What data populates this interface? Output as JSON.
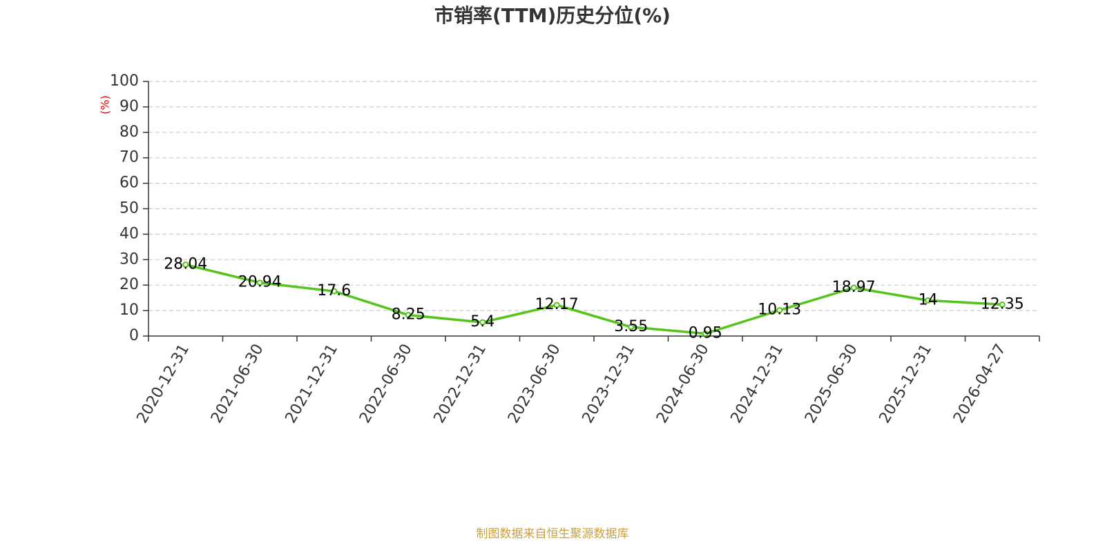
{
  "chart_data": {
    "type": "line",
    "title": "市销率(TTM)历史分位(%)",
    "y_label": "(%)",
    "source": "制图数据来自恒生聚源数据库",
    "categories": [
      "2020-12-31",
      "2021-06-30",
      "2021-12-31",
      "2022-06-30",
      "2022-12-31",
      "2023-06-30",
      "2023-12-31",
      "2024-06-30",
      "2024-12-31",
      "2025-06-30",
      "2025-12-31",
      "2026-04-27"
    ],
    "values": [
      28.04,
      20.94,
      17.6,
      8.25,
      5.4,
      12.17,
      3.55,
      0.95,
      10.13,
      18.97,
      14,
      12.35
    ],
    "color": "#52c41a",
    "ylim": [
      0,
      100
    ],
    "yticks": [
      0,
      10,
      20,
      30,
      40,
      50,
      60,
      70,
      80,
      90,
      100
    ],
    "grid": true
  }
}
